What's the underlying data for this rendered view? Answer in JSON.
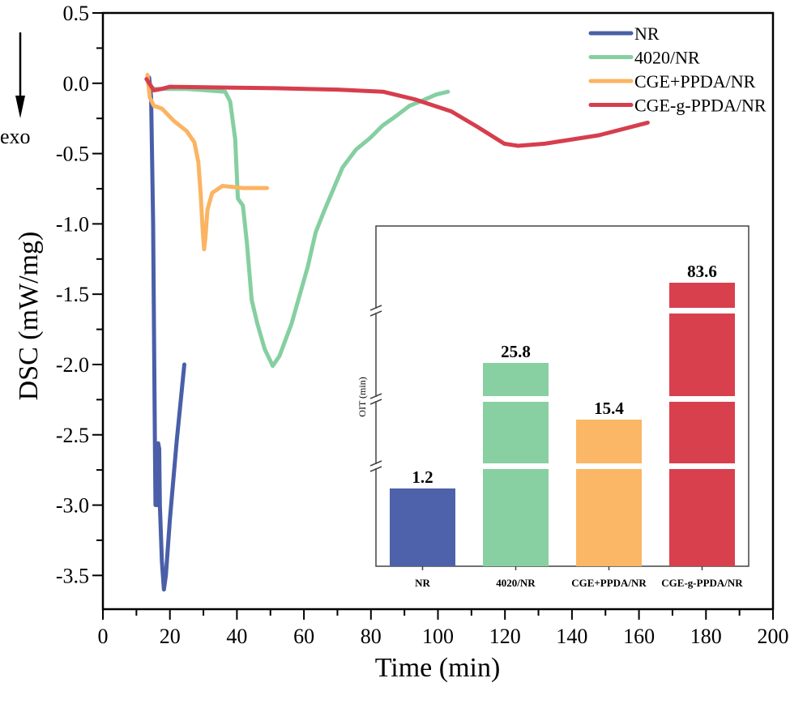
{
  "chart_data": [
    {
      "type": "line",
      "xlabel": "Time (min)",
      "ylabel": "DSC (mW/mg)",
      "xlim": [
        0,
        200
      ],
      "ylim": [
        -3.74,
        0.5
      ],
      "xticks": [
        "0",
        "20",
        "40",
        "60",
        "80",
        "100",
        "120",
        "140",
        "160",
        "180",
        "200"
      ],
      "yticks": [
        "0.5",
        "0.0",
        "-0.5",
        "-1.0",
        "-1.5",
        "-2.0",
        "-2.5",
        "-3.0",
        "-3.5"
      ],
      "annotation": "exo",
      "legend_position": "top-right",
      "grid": false,
      "series": [
        {
          "name": "NR",
          "color": "#4a5fa8",
          "points": [
            [
              13.8,
              0.04
            ],
            [
              14.4,
              -0.1
            ],
            [
              15.0,
              -1.0
            ],
            [
              15.5,
              -2.5
            ],
            [
              15.7,
              -3.0
            ],
            [
              16.3,
              -3.0
            ],
            [
              16.5,
              -2.56
            ],
            [
              16.8,
              -2.6
            ],
            [
              17.0,
              -3.0
            ],
            [
              17.6,
              -3.4
            ],
            [
              18.2,
              -3.6
            ],
            [
              18.8,
              -3.5
            ],
            [
              20.0,
              -3.1
            ],
            [
              22.0,
              -2.55
            ],
            [
              24.3,
              -2.0
            ]
          ]
        },
        {
          "name": "4020/NR",
          "color": "#85cfa1",
          "points": [
            [
              13.5,
              0.0
            ],
            [
              15,
              -0.04
            ],
            [
              25,
              -0.04
            ],
            [
              36.5,
              -0.06
            ],
            [
              38,
              -0.13
            ],
            [
              39.5,
              -0.4
            ],
            [
              40.3,
              -0.82
            ],
            [
              41.8,
              -0.87
            ],
            [
              43,
              -1.14
            ],
            [
              44.4,
              -1.54
            ],
            [
              46.1,
              -1.71
            ],
            [
              48.3,
              -1.89
            ],
            [
              50.7,
              -2.01
            ],
            [
              52.7,
              -1.94
            ],
            [
              56.3,
              -1.71
            ],
            [
              61.1,
              -1.31
            ],
            [
              63.5,
              -1.06
            ],
            [
              66,
              -0.91
            ],
            [
              71.5,
              -0.6
            ],
            [
              75.6,
              -0.47
            ],
            [
              79.7,
              -0.39
            ],
            [
              83.5,
              -0.3
            ],
            [
              87.7,
              -0.23
            ],
            [
              91.5,
              -0.16
            ],
            [
              95.7,
              -0.12
            ],
            [
              99.5,
              -0.08
            ],
            [
              103,
              -0.06
            ]
          ]
        },
        {
          "name": "CGE+PPDA/NR",
          "color": "#fbb462",
          "points": [
            [
              13.3,
              0.06
            ],
            [
              14,
              -0.1
            ],
            [
              15.2,
              -0.16
            ],
            [
              17.6,
              -0.18
            ],
            [
              21.3,
              -0.27
            ],
            [
              25,
              -0.34
            ],
            [
              27.3,
              -0.42
            ],
            [
              28.5,
              -0.56
            ],
            [
              29.2,
              -0.79
            ],
            [
              29.8,
              -1.05
            ],
            [
              30.2,
              -1.18
            ],
            [
              30.6,
              -1.1
            ],
            [
              31.2,
              -0.9
            ],
            [
              32.6,
              -0.78
            ],
            [
              35.7,
              -0.73
            ],
            [
              41.8,
              -0.745
            ],
            [
              49,
              -0.745
            ]
          ]
        },
        {
          "name": "CGE-g-PPDA/NR",
          "color": "#d63e4d",
          "points": [
            [
              13,
              0.03
            ],
            [
              15.2,
              -0.05
            ],
            [
              17.6,
              -0.04
            ],
            [
              20,
              -0.025
            ],
            [
              35,
              -0.03
            ],
            [
              51.4,
              -0.035
            ],
            [
              70,
              -0.045
            ],
            [
              83.6,
              -0.06
            ],
            [
              93.2,
              -0.115
            ],
            [
              104,
              -0.2
            ],
            [
              111.8,
              -0.31
            ],
            [
              119.8,
              -0.43
            ],
            [
              123.9,
              -0.445
            ],
            [
              131.9,
              -0.43
            ],
            [
              148,
              -0.37
            ],
            [
              162.6,
              -0.28
            ]
          ]
        }
      ]
    },
    {
      "type": "bar",
      "ylabel": "OIT (min)",
      "axis_breaks": true,
      "categories": [
        "NR",
        "4020/NR",
        "CGE+PPDA/NR",
        "CGE-g-PPDA/NR"
      ],
      "values": [
        1.2,
        25.8,
        15.4,
        83.6
      ],
      "labels": [
        "1.2",
        "25.8",
        "15.4",
        "83.6"
      ],
      "colors": [
        "#4e62ab",
        "#88d0a2",
        "#fbb666",
        "#d8404e"
      ]
    }
  ]
}
